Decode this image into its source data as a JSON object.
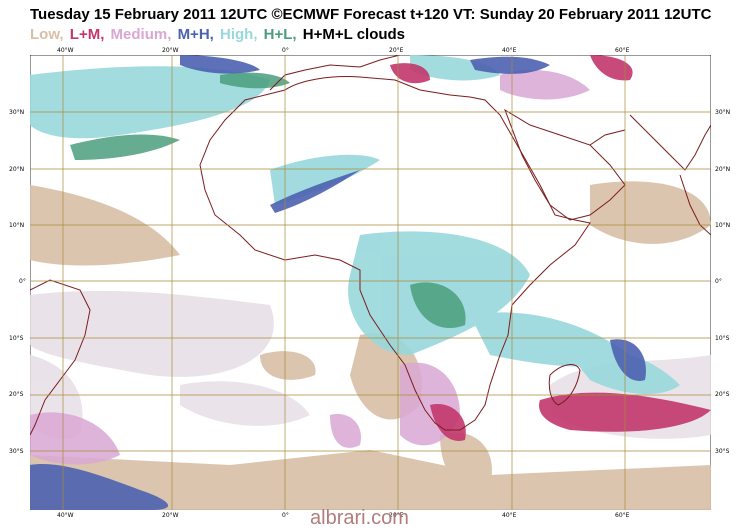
{
  "header": {
    "title": "Tuesday 15 February 2011 12UTC ©ECMWF Forecast t+120 VT: Sunday 20 February 2011 12UTC"
  },
  "legend": {
    "items": [
      {
        "label": "Low,",
        "color": "#d8bfa6"
      },
      {
        "label": "L+M,",
        "color": "#c2366b"
      },
      {
        "label": "Medium,",
        "color": "#d9a7d3"
      },
      {
        "label": "M+H,",
        "color": "#4b61b0"
      },
      {
        "label": "High,",
        "color": "#98d8dc"
      },
      {
        "label": "H+L,",
        "color": "#4a9d7d"
      },
      {
        "label": "H+M+L clouds",
        "color": "#000000"
      }
    ]
  },
  "map": {
    "colors": {
      "grid": "#a88b3a",
      "coast": "#7a1d1d",
      "low": "#d8bfa6",
      "lm": "#c2366b",
      "medium": "#d9a7d3",
      "mh": "#4b61b0",
      "high": "#98d8dc",
      "hl": "#4a9d7d",
      "light": "#e6dfe6"
    },
    "lon_labels": [
      "40°W",
      "20°W",
      "0°",
      "20°E",
      "40°E",
      "60°E"
    ],
    "lat_labels": [
      "30°N",
      "20°N",
      "10°N",
      "0°",
      "10°S",
      "20°S",
      "30°S"
    ]
  },
  "footer": {
    "watermark": "albrari.com"
  }
}
